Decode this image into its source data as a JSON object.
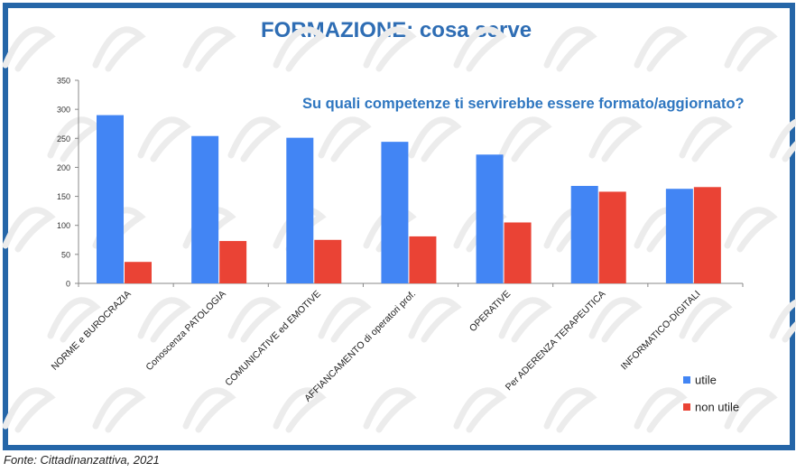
{
  "page_title": "FORMAZIONE: cosa serve",
  "source_note": "Fonte: Cittadinanzattiva, 2021",
  "chart_data": {
    "type": "bar",
    "title": "Su quali competenze ti servirebbe essere formato/aggiornato?",
    "categories": [
      "NORME e BUROCRAZIA",
      "Conoscenza PATOLOGIA",
      "COMUNICATIVE ed EMOTIVE",
      "AFFIANCAMENTO di operatori prof.",
      "OPERATIVE",
      "Per ADERENZA TERAPEUTICA",
      "INFORMATICO-DIGITALI"
    ],
    "series": [
      {
        "name": "utile",
        "color": "#4285f4",
        "values": [
          290,
          254,
          251,
          244,
          222,
          168,
          163
        ]
      },
      {
        "name": "non utile",
        "color": "#ea4335",
        "values": [
          37,
          73,
          75,
          81,
          105,
          158,
          166
        ]
      }
    ],
    "ylim": [
      0,
      350
    ],
    "yticks": [
      0,
      50,
      100,
      150,
      200,
      250,
      300,
      350
    ],
    "grid": false,
    "legend_position": "bottom-right"
  }
}
